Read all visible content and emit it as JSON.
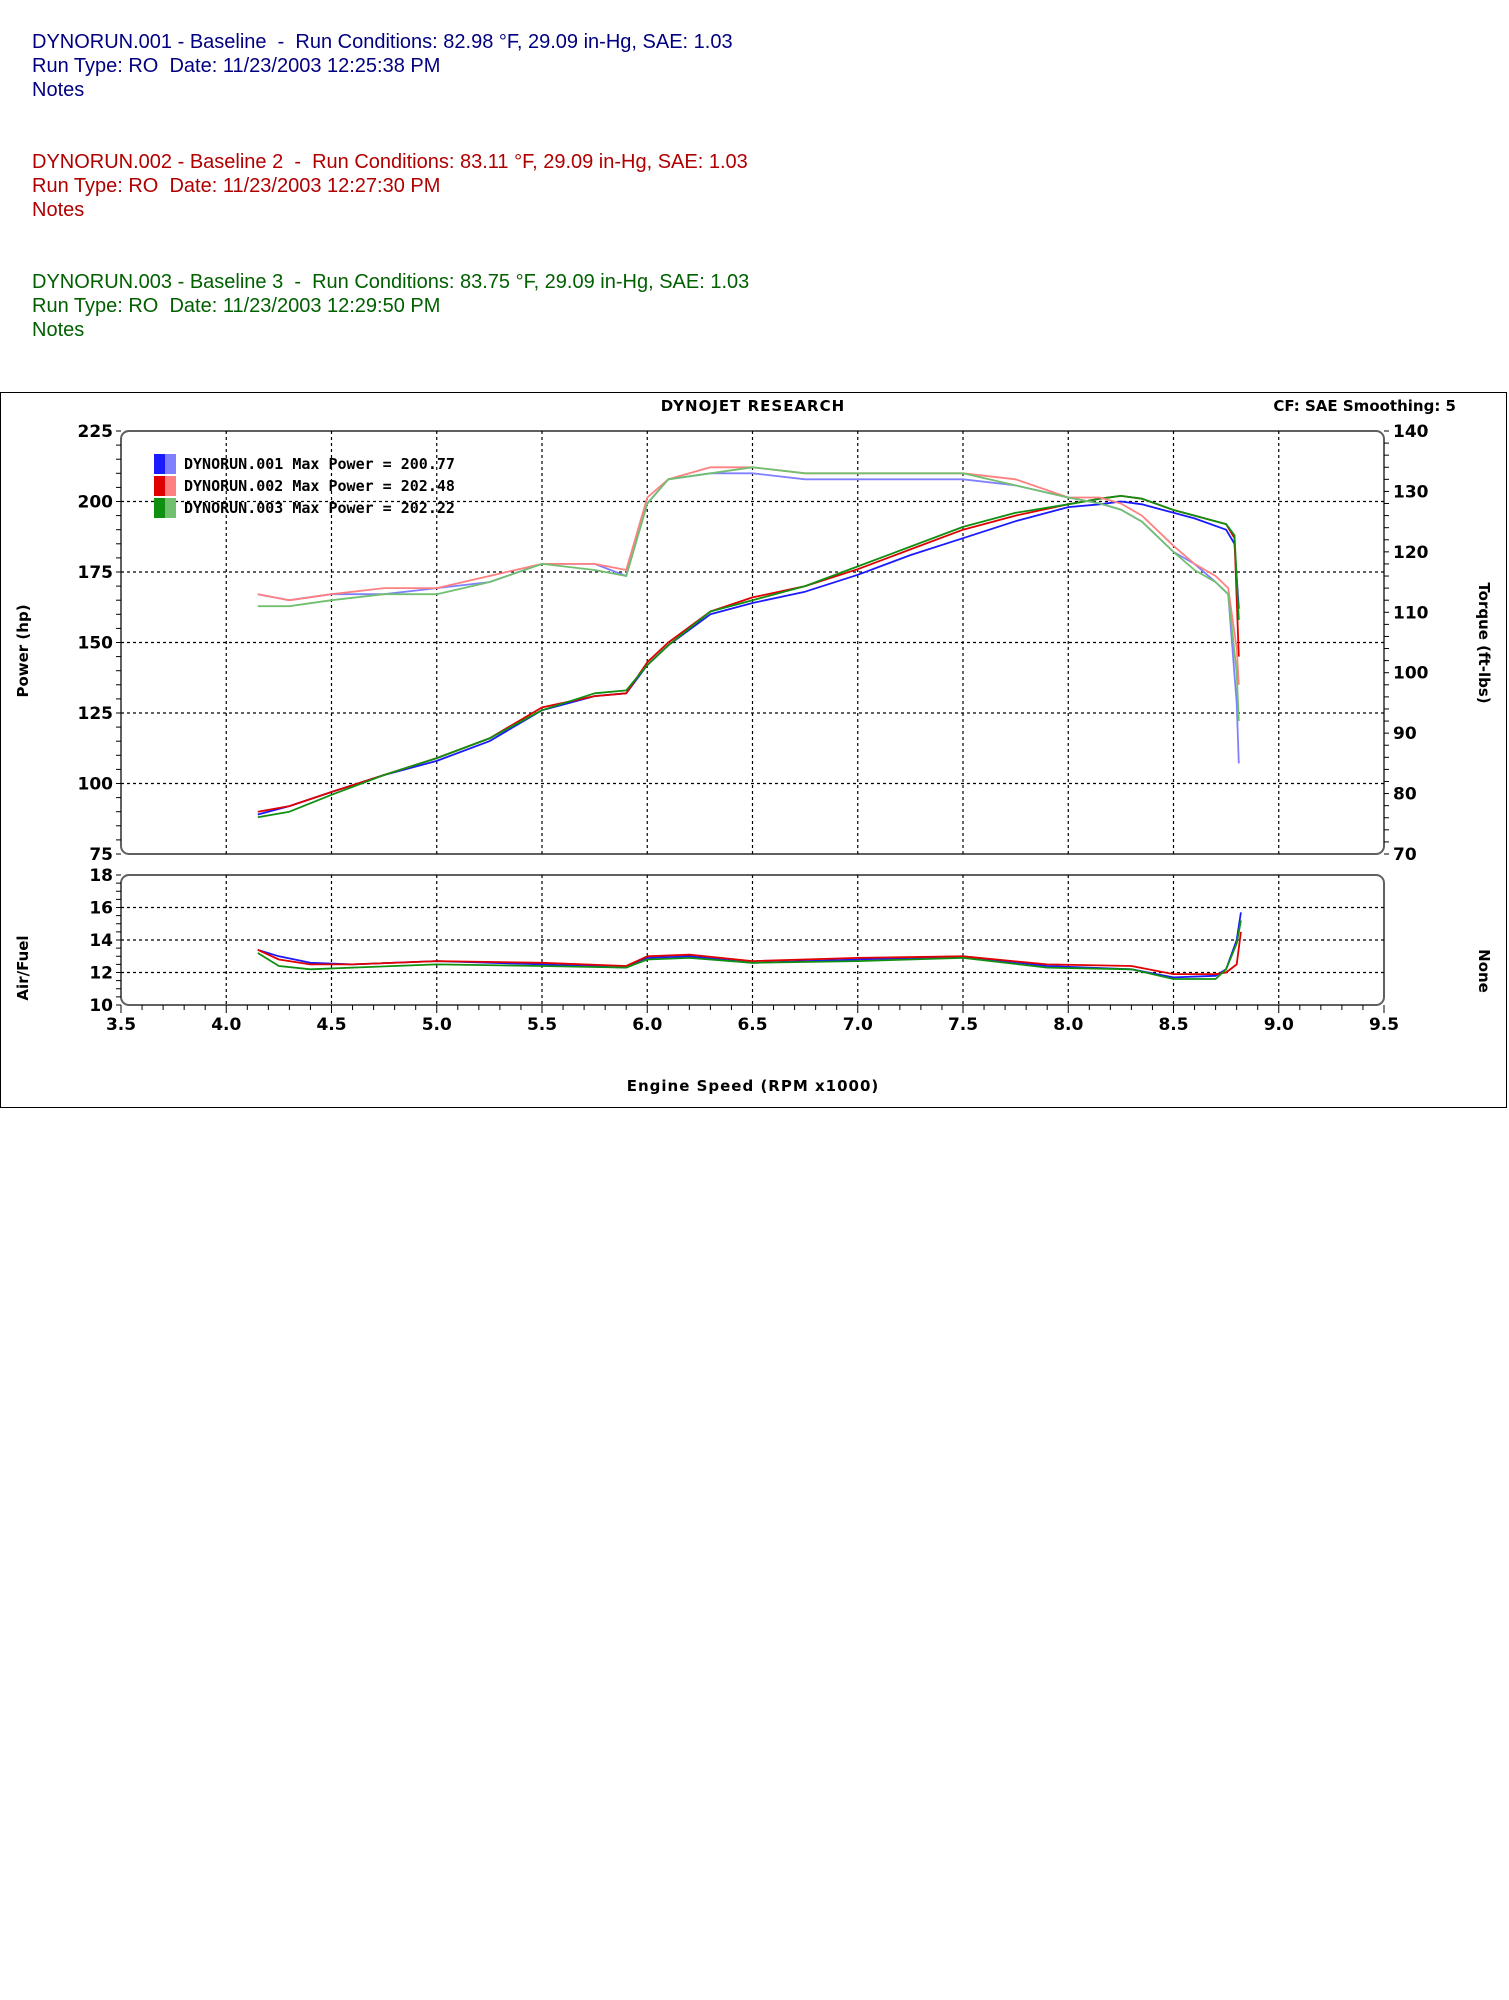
{
  "runs": [
    {
      "header": "DYNORUN.001 - Baseline  -  Run Conditions: 82.98 °F, 29.09 in-Hg, SAE: 1.03",
      "type_line": "Run Type: RO  Date: 11/23/2003 12:25:38 PM",
      "notes": "Notes",
      "color": "#000080"
    },
    {
      "header": "DYNORUN.002 - Baseline 2  -  Run Conditions: 83.11 °F, 29.09 in-Hg, SAE: 1.03",
      "type_line": "Run Type: RO  Date: 11/23/2003 12:27:30 PM",
      "notes": "Notes",
      "color": "#b00000"
    },
    {
      "header": "DYNORUN.003 - Baseline 3  -  Run Conditions: 83.75 °F, 29.09 in-Hg, SAE: 1.03",
      "type_line": "Run Type: RO  Date: 11/23/2003 12:29:50 PM",
      "notes": "Notes",
      "color": "#006000"
    }
  ],
  "chart_header": {
    "title": "DYNOJET RESEARCH",
    "cf_smoothing": "CF: SAE  Smoothing: 5"
  },
  "chart_data": [
    {
      "type": "line",
      "title": "DYNOJET RESEARCH",
      "xlabel": "Engine Speed (RPM x1000)",
      "ylabel": "Power (hp)",
      "y2label": "Torque (ft-lbs)",
      "xlim": [
        3.5,
        9.5
      ],
      "ylim": [
        75,
        225
      ],
      "y2lim": [
        70,
        140
      ],
      "x_ticks": [
        "3.5",
        "4.0",
        "4.5",
        "5.0",
        "5.5",
        "6.0",
        "6.5",
        "7.0",
        "7.5",
        "8.0",
        "8.5",
        "9.0",
        "9.5"
      ],
      "y_ticks": [
        "75",
        "100",
        "125",
        "150",
        "175",
        "200",
        "225"
      ],
      "y2_ticks": [
        "70",
        "80",
        "90",
        "100",
        "110",
        "120",
        "130",
        "140"
      ],
      "grid": true,
      "legend_position": "top-left",
      "legend": [
        {
          "label": "DYNORUN.001 Max Power = 200.77",
          "color": "#1a1aff",
          "light": "#8080ff"
        },
        {
          "label": "DYNORUN.002 Max Power = 202.48",
          "color": "#e00000",
          "light": "#ff8080"
        },
        {
          "label": "DYNORUN.003 Max Power = 202.22",
          "color": "#109010",
          "light": "#70c070"
        }
      ],
      "series": [
        {
          "name": "DYNORUN.001",
          "kind": "power",
          "color": "#1a1aff",
          "x": [
            4.15,
            4.3,
            4.5,
            4.75,
            5.0,
            5.25,
            5.5,
            5.75,
            5.9,
            6.0,
            6.1,
            6.3,
            6.5,
            6.75,
            7.0,
            7.25,
            7.5,
            7.75,
            8.0,
            8.15,
            8.25,
            8.35,
            8.5,
            8.6,
            8.75,
            8.79,
            8.81
          ],
          "y": [
            89,
            92,
            97,
            103,
            108,
            115,
            126,
            131,
            132,
            142,
            149,
            160,
            164,
            168,
            174,
            181,
            187,
            193,
            198,
            199,
            200,
            199,
            196,
            194,
            190,
            185,
            162
          ]
        },
        {
          "name": "DYNORUN.002",
          "kind": "power",
          "color": "#e00000",
          "x": [
            4.15,
            4.3,
            4.5,
            4.75,
            5.0,
            5.25,
            5.5,
            5.75,
            5.9,
            6.0,
            6.1,
            6.3,
            6.5,
            6.75,
            7.0,
            7.25,
            7.5,
            7.75,
            8.0,
            8.15,
            8.25,
            8.35,
            8.5,
            8.6,
            8.75,
            8.79,
            8.81
          ],
          "y": [
            90,
            92,
            97,
            103,
            109,
            116,
            127,
            131,
            132,
            143,
            150,
            161,
            166,
            170,
            176,
            183,
            190,
            195,
            199,
            201,
            202,
            201,
            197,
            195,
            192,
            187,
            145
          ]
        },
        {
          "name": "DYNORUN.003",
          "kind": "power",
          "color": "#109010",
          "x": [
            4.15,
            4.3,
            4.5,
            4.75,
            5.0,
            5.25,
            5.5,
            5.75,
            5.9,
            6.0,
            6.1,
            6.3,
            6.5,
            6.75,
            7.0,
            7.25,
            7.5,
            7.75,
            8.0,
            8.15,
            8.25,
            8.35,
            8.5,
            8.6,
            8.75,
            8.79,
            8.81
          ],
          "y": [
            88,
            90,
            96,
            103,
            109,
            116,
            126,
            132,
            133,
            142,
            149,
            161,
            165,
            170,
            177,
            184,
            191,
            196,
            199,
            201,
            202,
            201,
            197,
            195,
            192,
            188,
            158
          ]
        },
        {
          "name": "DYNORUN.001",
          "kind": "torque",
          "color": "#8080ff",
          "x": [
            4.15,
            4.3,
            4.5,
            4.75,
            5.0,
            5.25,
            5.5,
            5.75,
            5.9,
            6.0,
            6.1,
            6.3,
            6.5,
            6.75,
            7.0,
            7.25,
            7.5,
            7.75,
            8.0,
            8.15,
            8.25,
            8.35,
            8.5,
            8.6,
            8.7,
            8.76,
            8.8,
            8.81
          ],
          "y": [
            113,
            112,
            113,
            113,
            114,
            115,
            118,
            118,
            116,
            128,
            132,
            133,
            133,
            132,
            132,
            132,
            132,
            131,
            129,
            128,
            127,
            125,
            120,
            118,
            115,
            113,
            95,
            85
          ]
        },
        {
          "name": "DYNORUN.002",
          "kind": "torque",
          "color": "#ff8080",
          "x": [
            4.15,
            4.3,
            4.5,
            4.75,
            5.0,
            5.25,
            5.5,
            5.75,
            5.9,
            6.0,
            6.1,
            6.3,
            6.5,
            6.75,
            7.0,
            7.25,
            7.5,
            7.75,
            8.0,
            8.15,
            8.25,
            8.35,
            8.5,
            8.6,
            8.7,
            8.76,
            8.8,
            8.81
          ],
          "y": [
            113,
            112,
            113,
            114,
            114,
            116,
            118,
            118,
            117,
            129,
            132,
            134,
            134,
            133,
            133,
            133,
            133,
            132,
            129,
            129,
            128,
            126,
            121,
            118,
            116,
            114,
            104,
            98
          ]
        },
        {
          "name": "DYNORUN.003",
          "kind": "torque",
          "color": "#70c070",
          "x": [
            4.15,
            4.3,
            4.5,
            4.75,
            5.0,
            5.25,
            5.5,
            5.75,
            5.9,
            6.0,
            6.1,
            6.3,
            6.5,
            6.75,
            7.0,
            7.25,
            7.5,
            7.75,
            8.0,
            8.15,
            8.25,
            8.35,
            8.5,
            8.6,
            8.7,
            8.76,
            8.8,
            8.81
          ],
          "y": [
            111,
            111,
            112,
            113,
            113,
            115,
            118,
            117,
            116,
            128,
            132,
            133,
            134,
            133,
            133,
            133,
            133,
            131,
            129,
            128,
            127,
            125,
            120,
            117,
            115,
            113,
            100,
            92
          ]
        }
      ]
    },
    {
      "type": "line",
      "ylabel": "Air/Fuel",
      "y2label": "None",
      "xlim": [
        3.5,
        9.5
      ],
      "ylim": [
        10,
        18
      ],
      "y_ticks": [
        "10",
        "12",
        "14",
        "16",
        "18"
      ],
      "grid": true,
      "series": [
        {
          "name": "DYNORUN.001",
          "color": "#1a1aff",
          "x": [
            4.15,
            4.25,
            4.4,
            4.6,
            5.0,
            5.5,
            5.9,
            6.0,
            6.2,
            6.5,
            7.0,
            7.5,
            7.9,
            8.3,
            8.5,
            8.7,
            8.75,
            8.8,
            8.82
          ],
          "y": [
            13.4,
            13.0,
            12.6,
            12.5,
            12.7,
            12.5,
            12.3,
            12.9,
            13.0,
            12.6,
            12.8,
            13.0,
            12.4,
            12.2,
            11.7,
            11.8,
            12.2,
            14.0,
            15.7
          ]
        },
        {
          "name": "DYNORUN.002",
          "color": "#e00000",
          "x": [
            4.15,
            4.25,
            4.4,
            4.6,
            5.0,
            5.5,
            5.9,
            6.0,
            6.2,
            6.5,
            7.0,
            7.5,
            7.9,
            8.3,
            8.5,
            8.7,
            8.75,
            8.8,
            8.82
          ],
          "y": [
            13.4,
            12.8,
            12.5,
            12.5,
            12.7,
            12.6,
            12.4,
            13.0,
            13.1,
            12.7,
            12.9,
            13.0,
            12.5,
            12.4,
            11.9,
            11.9,
            12.0,
            12.5,
            14.5
          ]
        },
        {
          "name": "DYNORUN.003",
          "color": "#109010",
          "x": [
            4.15,
            4.25,
            4.4,
            4.6,
            5.0,
            5.5,
            5.9,
            6.0,
            6.2,
            6.5,
            7.0,
            7.5,
            7.9,
            8.3,
            8.5,
            8.7,
            8.75,
            8.8,
            8.82
          ],
          "y": [
            13.2,
            12.4,
            12.2,
            12.3,
            12.5,
            12.4,
            12.3,
            12.8,
            12.9,
            12.6,
            12.7,
            12.9,
            12.3,
            12.2,
            11.6,
            11.6,
            12.2,
            13.8,
            15.2
          ]
        }
      ]
    }
  ]
}
